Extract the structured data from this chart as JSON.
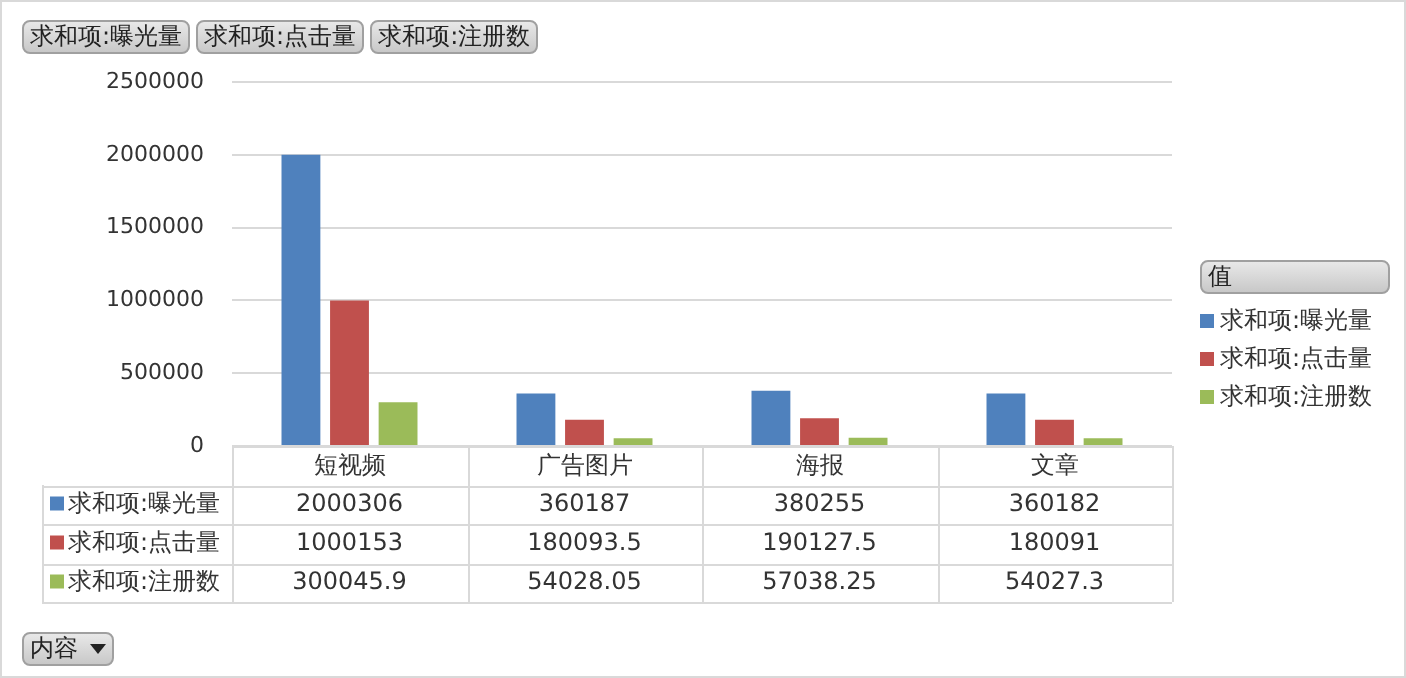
{
  "chart_data": {
    "type": "bar",
    "annotations": [
      "内容"
    ],
    "legend_title": "值",
    "categories": [
      "短视频",
      "广告图片",
      "海报",
      "文章"
    ],
    "series": [
      {
        "name": "求和项:曝光量",
        "color": "#4f81bd",
        "values": [
          2000306,
          360187,
          380255,
          360182
        ]
      },
      {
        "name": "求和项:点击量",
        "color": "#c0504d",
        "values": [
          1000153,
          180093.5,
          190127.5,
          180091
        ]
      },
      {
        "name": "求和项:注册数",
        "color": "#9bbb59",
        "values": [
          300045.9,
          54028.05,
          57038.25,
          54027.3
        ]
      }
    ],
    "ylim": [
      0,
      2500000
    ],
    "yticks": [
      0,
      500000,
      1000000,
      1500000,
      2000000,
      2500000
    ],
    "grid": "y",
    "legend": "right",
    "data_labels": true
  }
}
